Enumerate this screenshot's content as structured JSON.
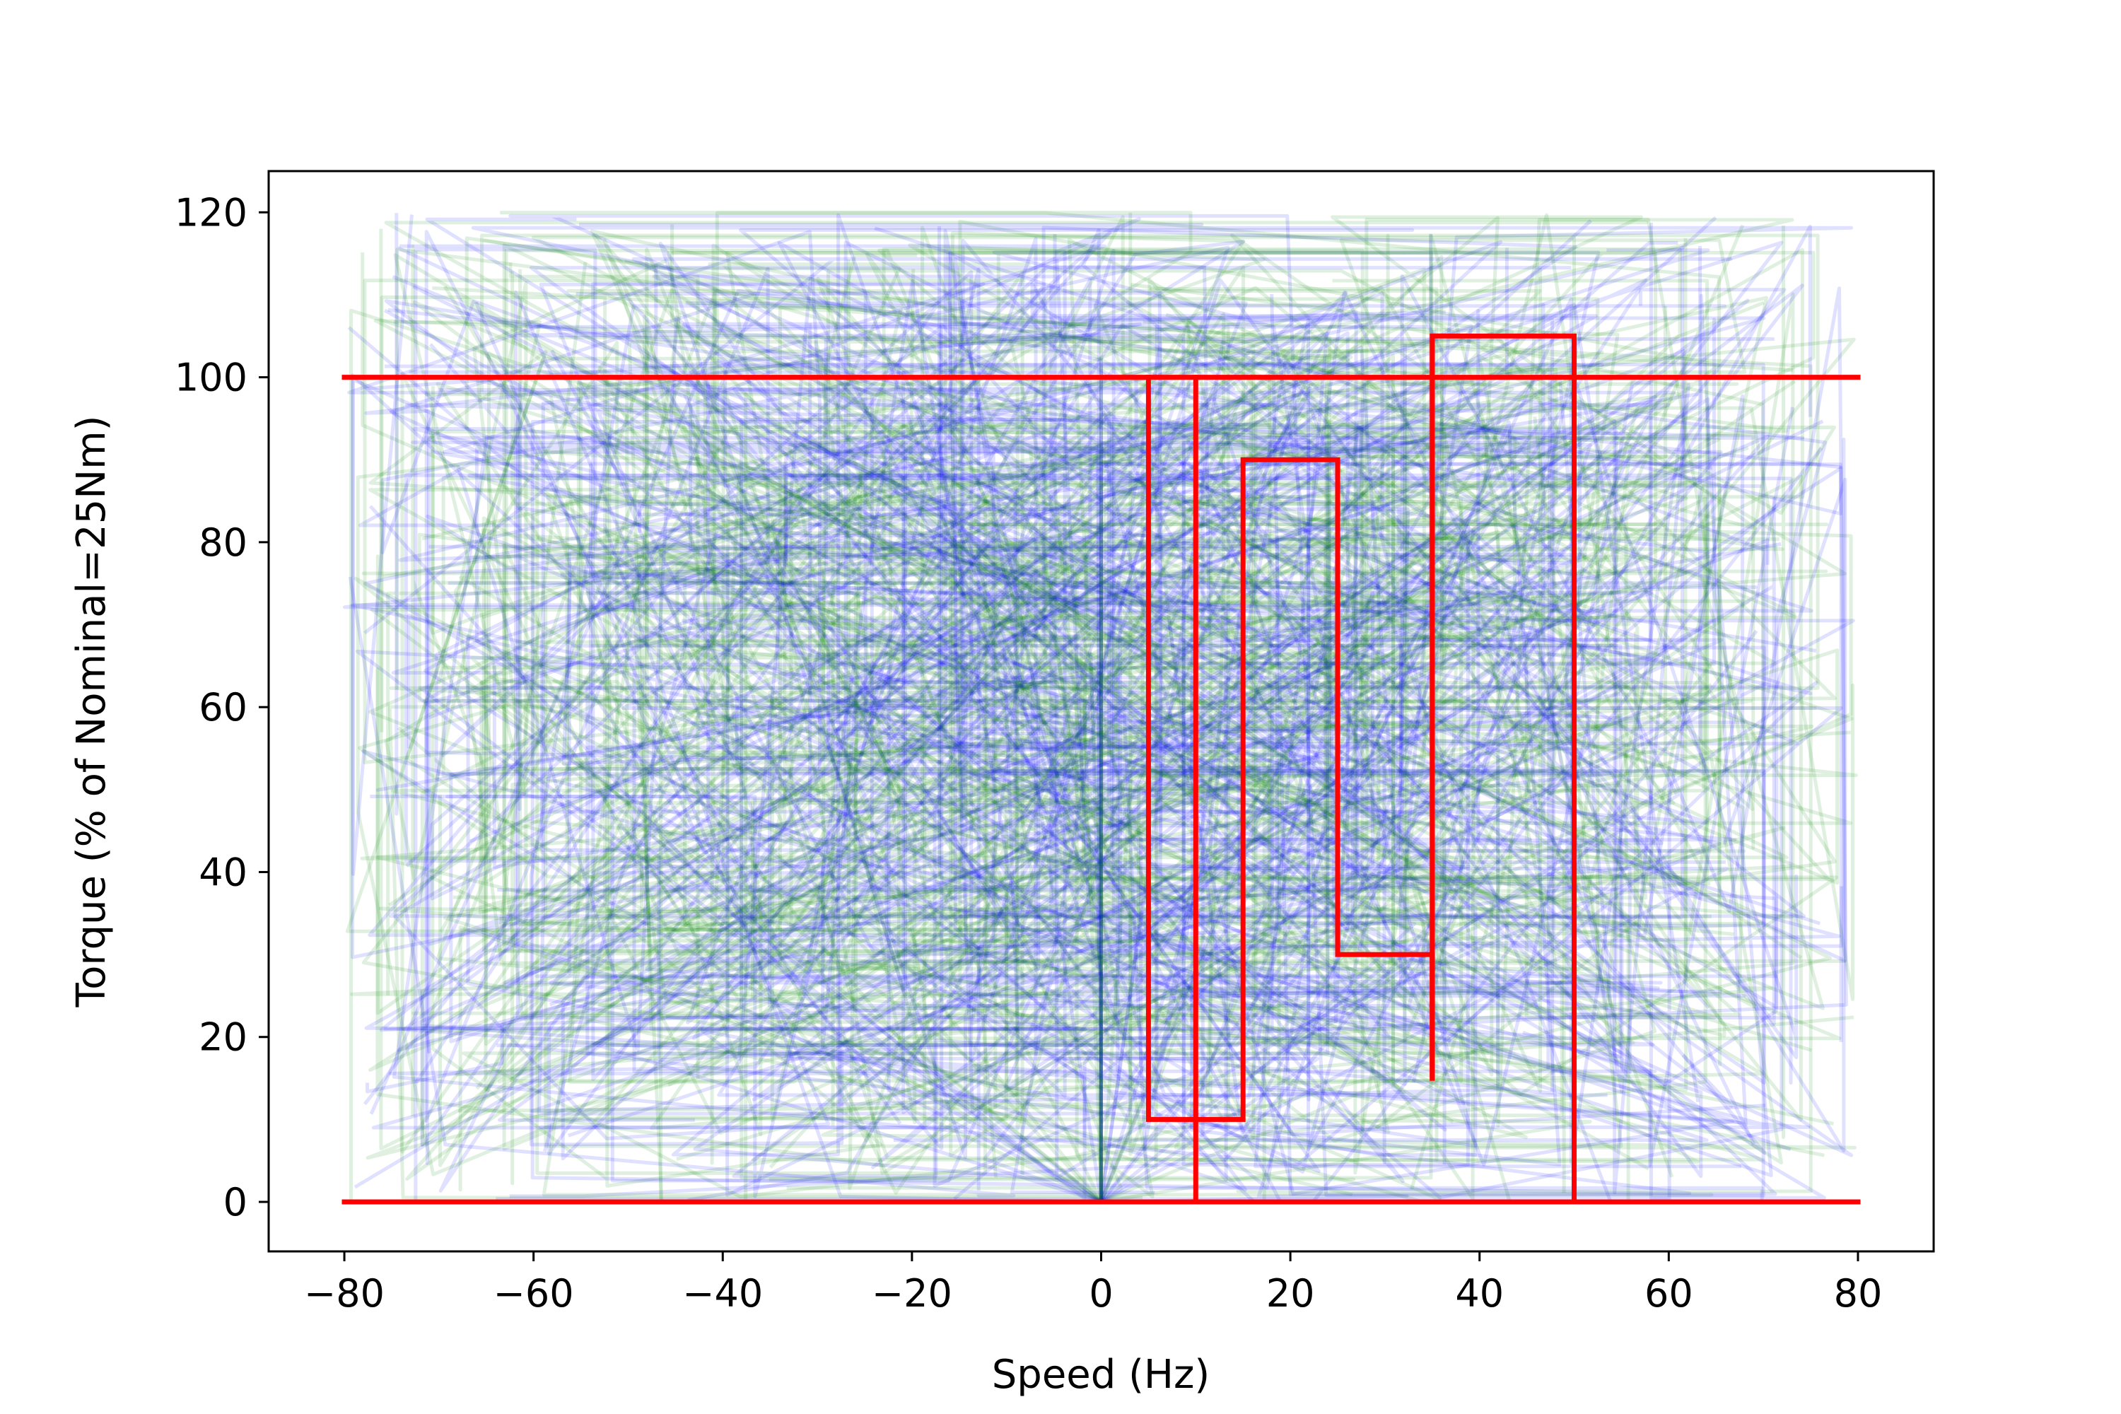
{
  "chart_data": {
    "type": "line",
    "title": "",
    "xlabel": "Speed (Hz)",
    "ylabel": "Torque (% of Nominal=25Nm)",
    "xlim": [
      -88,
      88
    ],
    "ylim": [
      -6,
      125
    ],
    "xticks": [
      -80,
      -60,
      -40,
      -20,
      0,
      20,
      40,
      60,
      80
    ],
    "yticks": [
      0,
      20,
      40,
      60,
      80,
      100,
      120
    ],
    "grid": false,
    "legend": "none",
    "colors": {
      "limit": "#ff0000",
      "trajectory_a": "#0000ff",
      "trajectory_b": "#008000",
      "axes": "#000000"
    },
    "series": [
      {
        "style": "limit",
        "x": [
          -80,
          80
        ],
        "y": [
          100,
          100
        ]
      },
      {
        "style": "limit",
        "x": [
          -80,
          80
        ],
        "y": [
          0,
          0
        ]
      },
      {
        "style": "limit",
        "x": [
          5,
          5,
          15,
          15,
          25,
          25,
          35,
          35
        ],
        "y": [
          100,
          10,
          10,
          90,
          90,
          30,
          30,
          15
        ]
      },
      {
        "style": "limit",
        "x": [
          10,
          10
        ],
        "y": [
          0,
          100
        ]
      },
      {
        "style": "limit",
        "x": [
          35,
          35,
          50,
          50
        ],
        "y": [
          15,
          105,
          105,
          0
        ]
      }
    ],
    "background_trajectories": {
      "description_visible": false,
      "x_range": [
        -80,
        80
      ],
      "y_range": [
        0,
        120
      ],
      "origin": [
        0,
        0
      ],
      "colors": [
        "trajectory_a",
        "trajectory_b"
      ],
      "opacity": 0.12
    }
  }
}
